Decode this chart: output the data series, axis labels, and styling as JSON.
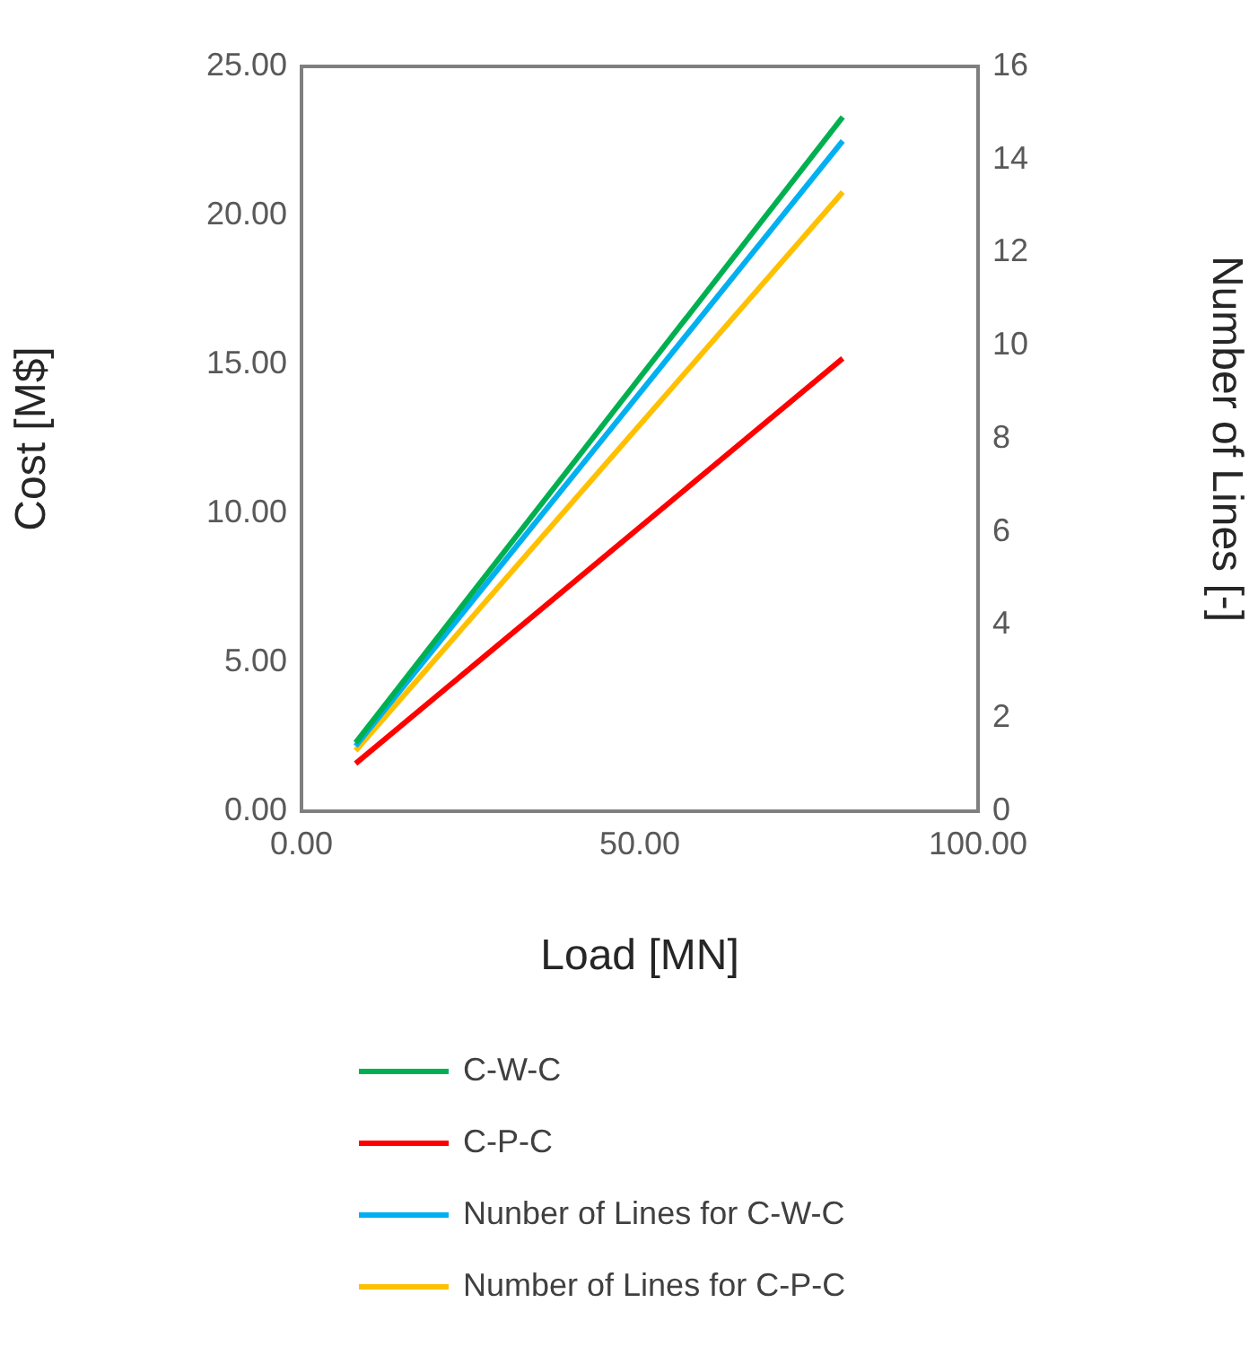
{
  "chart_data": {
    "type": "line",
    "xlabel": "Load [MN]",
    "ylabel": "Cost [M$]",
    "y2label": "Number of Lines [-]",
    "x": [
      8,
      80
    ],
    "series": [
      {
        "name": "C-W-C",
        "color": "#00b050",
        "values": [
          2.3,
          23.3
        ]
      },
      {
        "name": "C-P-C",
        "color": "#ff0000",
        "values": [
          1.6,
          15.2
        ]
      },
      {
        "name": "Nunber of Lines for C-W-C",
        "color": "#00b0f0",
        "values": [
          1.4,
          14.4
        ],
        "axis": "y2"
      },
      {
        "name": "Number of Lines for C-P-C",
        "color": "#ffc000",
        "values": [
          1.3,
          13.3
        ],
        "axis": "y2"
      }
    ],
    "xlim": [
      0,
      100
    ],
    "xticks": [
      {
        "value": 0,
        "label": "0.00"
      },
      {
        "value": 50,
        "label": "50.00"
      },
      {
        "value": 100,
        "label": "100.00"
      }
    ],
    "ylim": [
      0,
      25
    ],
    "yticks": [
      {
        "value": 0,
        "label": "0.00"
      },
      {
        "value": 5,
        "label": "5.00"
      },
      {
        "value": 10,
        "label": "10.00"
      },
      {
        "value": 15,
        "label": "15.00"
      },
      {
        "value": 20,
        "label": "20.00"
      },
      {
        "value": 25,
        "label": "25.00"
      }
    ],
    "y2lim": [
      0,
      16
    ],
    "y2ticks": [
      0,
      2,
      4,
      6,
      8,
      10,
      12,
      14,
      16
    ],
    "grid": false,
    "legend": "bottom",
    "marker": "none",
    "line_style": "solid"
  }
}
